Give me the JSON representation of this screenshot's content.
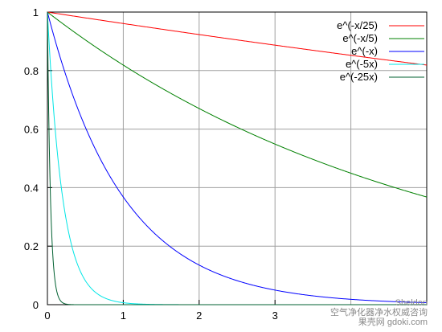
{
  "chart_data": {
    "type": "line",
    "title": "",
    "xlabel": "",
    "ylabel": "",
    "xlim": [
      0,
      5
    ],
    "ylim": [
      0,
      1
    ],
    "x_ticks": [
      "0",
      "1",
      "2",
      "3"
    ],
    "y_ticks": [
      "0",
      "0.2",
      "0.4",
      "0.6",
      "0.8",
      "1"
    ],
    "grid": true,
    "legend_position": "top-right",
    "series": [
      {
        "name": "e^(-x/25)",
        "rate": 0.04,
        "color": "#ff0000"
      },
      {
        "name": "e^(-x/5)",
        "rate": 0.2,
        "color": "#008000"
      },
      {
        "name": "e^(-x)",
        "rate": 1,
        "color": "#0000ff"
      },
      {
        "name": "e^(-5x)",
        "rate": 5,
        "color": "#00e5e5"
      },
      {
        "name": "e^(-25x)",
        "rate": 25,
        "color": "#006030"
      }
    ]
  },
  "watermark": {
    "line1": "Sheldon",
    "line2": "空气净化器净水权威咨询",
    "line3": "果壳网 gdoki.com"
  }
}
